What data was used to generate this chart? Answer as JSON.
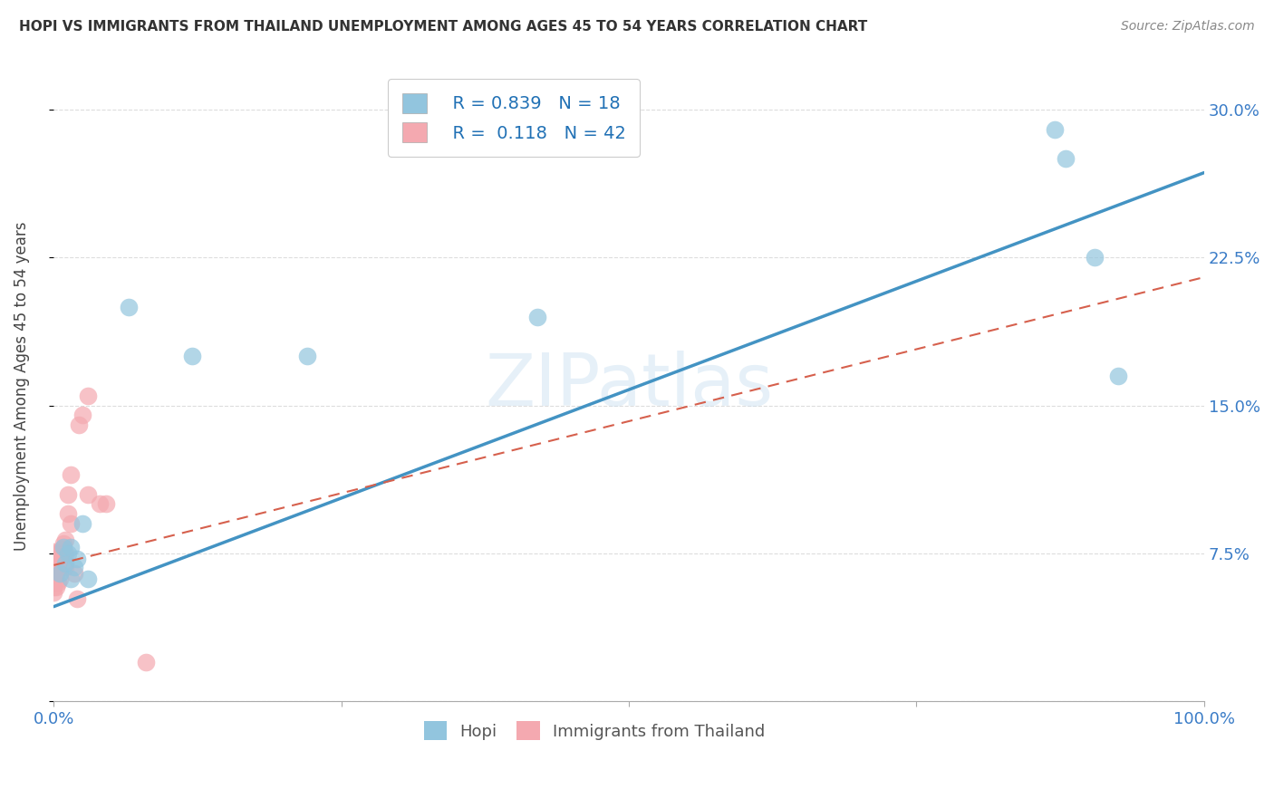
{
  "title": "HOPI VS IMMIGRANTS FROM THAILAND UNEMPLOYMENT AMONG AGES 45 TO 54 YEARS CORRELATION CHART",
  "source": "Source: ZipAtlas.com",
  "ylabel": "Unemployment Among Ages 45 to 54 years",
  "xlim": [
    0,
    1.0
  ],
  "ylim": [
    0,
    0.32
  ],
  "xticks": [
    0.0,
    0.25,
    0.5,
    0.75,
    1.0
  ],
  "xtick_labels": [
    "0.0%",
    "",
    "",
    "",
    "100.0%"
  ],
  "yticks": [
    0.0,
    0.075,
    0.15,
    0.225,
    0.3
  ],
  "ytick_labels": [
    "",
    "7.5%",
    "15.0%",
    "22.5%",
    "30.0%"
  ],
  "hopi_color": "#92c5de",
  "thailand_color": "#f4a9b0",
  "hopi_line_color": "#4393c3",
  "thailand_line_color": "#d6604d",
  "legend_R_hopi": "0.839",
  "legend_N_hopi": "18",
  "legend_R_thailand": "0.118",
  "legend_N_thailand": "42",
  "hopi_x": [
    0.005,
    0.008,
    0.01,
    0.012,
    0.015,
    0.015,
    0.018,
    0.02,
    0.025,
    0.03,
    0.065,
    0.12,
    0.22,
    0.42,
    0.87,
    0.88,
    0.905,
    0.925
  ],
  "hopi_y": [
    0.065,
    0.078,
    0.07,
    0.075,
    0.078,
    0.062,
    0.068,
    0.072,
    0.09,
    0.062,
    0.2,
    0.175,
    0.175,
    0.195,
    0.29,
    0.275,
    0.225,
    0.165
  ],
  "thailand_x": [
    0.0,
    0.0,
    0.0,
    0.0,
    0.0,
    0.0,
    0.0,
    0.0,
    0.0,
    0.0,
    0.0,
    0.0,
    0.0,
    0.0,
    0.0,
    0.0,
    0.002,
    0.002,
    0.004,
    0.004,
    0.005,
    0.005,
    0.006,
    0.007,
    0.008,
    0.008,
    0.01,
    0.01,
    0.01,
    0.012,
    0.012,
    0.015,
    0.015,
    0.018,
    0.02,
    0.022,
    0.025,
    0.03,
    0.03,
    0.04,
    0.045,
    0.08
  ],
  "thailand_y": [
    0.055,
    0.058,
    0.06,
    0.062,
    0.063,
    0.065,
    0.066,
    0.068,
    0.069,
    0.07,
    0.071,
    0.072,
    0.073,
    0.074,
    0.075,
    0.076,
    0.058,
    0.065,
    0.06,
    0.068,
    0.062,
    0.072,
    0.073,
    0.077,
    0.075,
    0.08,
    0.068,
    0.075,
    0.082,
    0.095,
    0.105,
    0.115,
    0.09,
    0.065,
    0.052,
    0.14,
    0.145,
    0.105,
    0.155,
    0.1,
    0.1,
    0.02
  ],
  "hopi_line_x0": 0.0,
  "hopi_line_y0": 0.048,
  "hopi_line_x1": 1.0,
  "hopi_line_y1": 0.268,
  "thai_line_x0": 0.0,
  "thai_line_y0": 0.069,
  "thai_line_x1": 1.0,
  "thai_line_y1": 0.215,
  "watermark": "ZIPatlas",
  "background_color": "#ffffff",
  "grid_color": "#dddddd"
}
